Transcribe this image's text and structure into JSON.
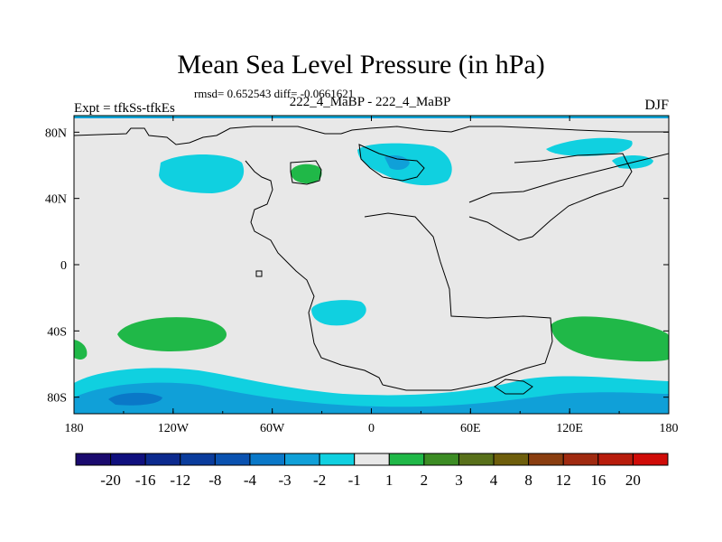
{
  "title": "Mean Sea Level Pressure (in hPa)",
  "stats_text": "rmsd= 0.652543 diff= -0.0661621",
  "left_label": "Expt = tfkSs-tfkEs",
  "center_label": "222_4_MaBP - 222_4_MaBP",
  "right_label": "DJF",
  "x_ticks": [
    "180",
    "120W",
    "60W",
    "0",
    "60E",
    "120E",
    "180"
  ],
  "y_ticks": [
    "80N",
    "40N",
    "0",
    "40S",
    "80S"
  ],
  "colorbar": {
    "labels": [
      "-20",
      "-16",
      "-12",
      "-8",
      "-4",
      "-3",
      "-2",
      "-1",
      "1",
      "2",
      "3",
      "4",
      "8",
      "12",
      "16",
      "20"
    ],
    "colors": [
      "#1a0a6e",
      "#10107e",
      "#0c2a8e",
      "#0a3c9c",
      "#0a52b0",
      "#0a78c8",
      "#10a0d8",
      "#10d0e0",
      "#e8e8e8",
      "#20b848",
      "#3c8c24",
      "#58701a",
      "#6e5e0c",
      "#8a3e10",
      "#a02a10",
      "#b81c0c",
      "#d00c08"
    ]
  },
  "map": {
    "background_color": "#e8e8e8",
    "regions": [
      {
        "name": "arctic-negative-anomaly",
        "level": "-2 to -1"
      },
      {
        "name": "north-pacific-negative-anomaly",
        "level": "-2 to -1"
      },
      {
        "name": "greenland-positive-anomaly",
        "level": "1 to 2"
      },
      {
        "name": "north-atlantic-negative-anomaly",
        "level": "-2 to -1"
      },
      {
        "name": "siberia-negative-anomaly",
        "level": "-2 to -1"
      },
      {
        "name": "south-atlantic-negative-anomaly",
        "level": "-2 to -1"
      },
      {
        "name": "south-pacific-positive-anomaly",
        "level": "1 to 2"
      },
      {
        "name": "indian-ocean-positive-anomaly",
        "level": "1 to 2"
      },
      {
        "name": "southern-ocean-negative-band",
        "level": "-3 to -1"
      }
    ]
  }
}
